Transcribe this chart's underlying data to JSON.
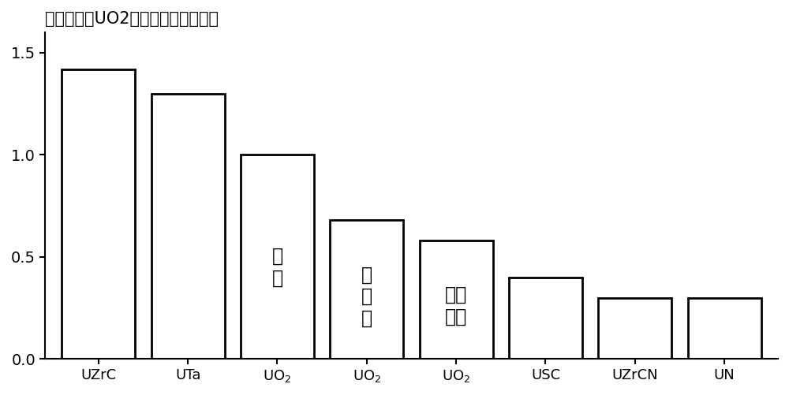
{
  "title": "相对于普通UO2燃料的燃料肿胀比例",
  "xlabel_labels": [
    "UZrC",
    "UTa",
    "UO2",
    "UO2",
    "UO2",
    "USC",
    "UZrCN",
    "UN"
  ],
  "values": [
    1.42,
    1.3,
    1.0,
    0.68,
    0.58,
    0.4,
    0.3,
    0.3
  ],
  "bar_annotations": [
    "",
    "",
    "普\n通",
    "柱\n状\n晶",
    "稳定\n开孔",
    "",
    "",
    ""
  ],
  "ylim": [
    0,
    1.6
  ],
  "yticks": [
    0,
    0.5,
    1.0,
    1.5
  ],
  "bar_color": "#ffffff",
  "bar_edgecolor": "#000000",
  "background_color": "#ffffff",
  "title_fontsize": 15,
  "annotation_fontsize": 17,
  "xlabel_fontsize": 13,
  "tick_labelsize": 14,
  "linewidth": 2.0,
  "bar_width": 0.82
}
